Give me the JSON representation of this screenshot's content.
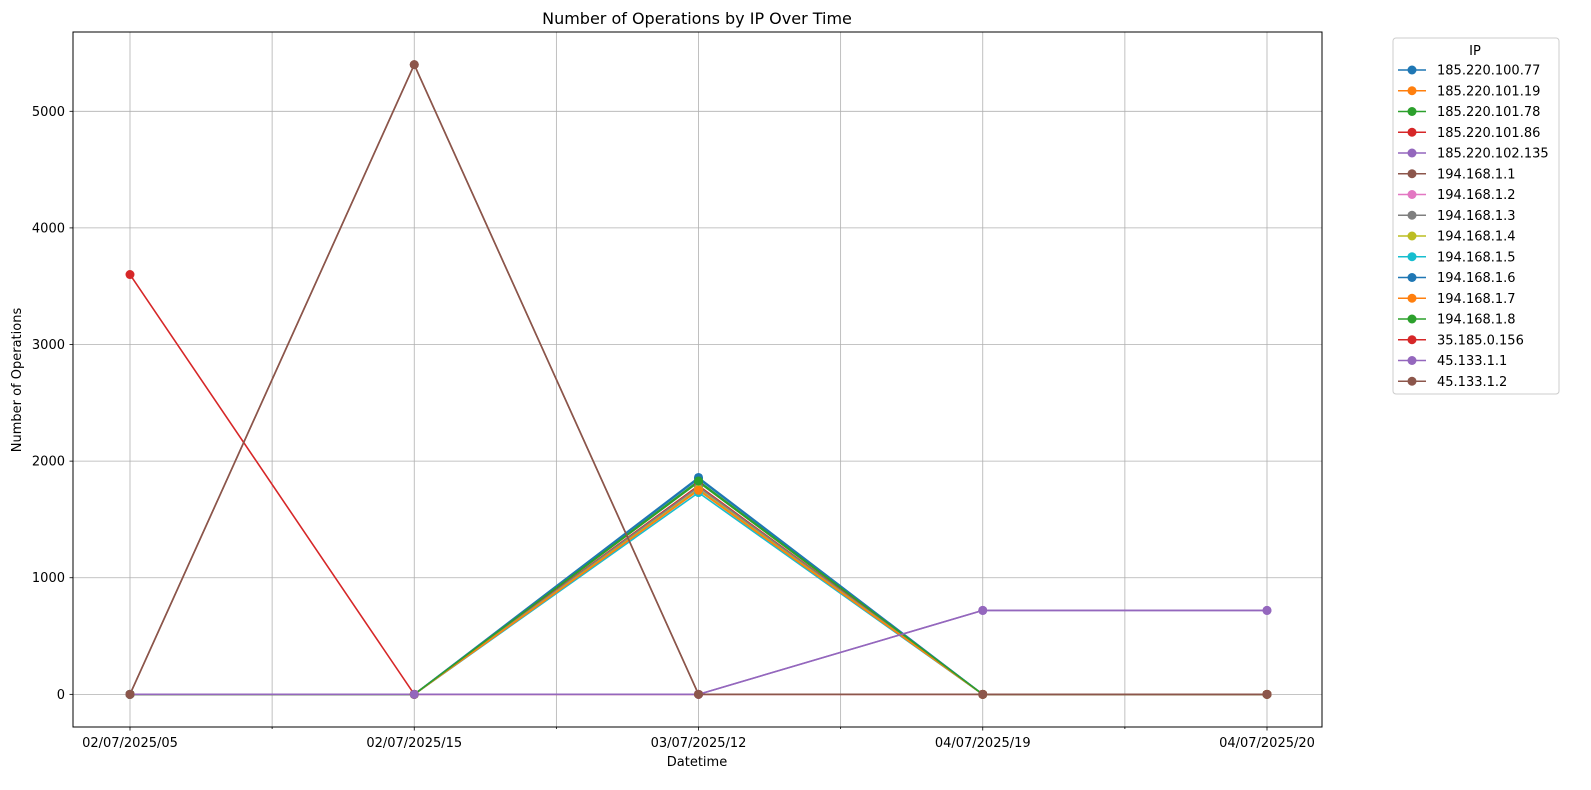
{
  "chart_data": {
    "type": "line",
    "title": "Number of Operations by IP Over Time",
    "xlabel": "Datetime",
    "ylabel": "Number of Operations",
    "categories": [
      "02/07/2025/05",
      "02/07/2025/15",
      "03/07/2025/12",
      "04/07/2025/19",
      "04/07/2025/20"
    ],
    "ylim": [
      -280,
      5680
    ],
    "yticks": [
      0,
      1000,
      2000,
      3000,
      4000,
      5000
    ],
    "grid": true,
    "legend": {
      "title": "IP",
      "placement": "outside-top-right"
    },
    "series": [
      {
        "name": "185.220.100.77",
        "color": "#1f77b4",
        "values": [
          0,
          0,
          1850,
          0,
          0
        ]
      },
      {
        "name": "185.220.101.19",
        "color": "#ff7f0e",
        "values": [
          0,
          0,
          1760,
          0,
          0
        ]
      },
      {
        "name": "185.220.101.78",
        "color": "#2ca02c",
        "values": [
          0,
          0,
          1820,
          0,
          0
        ]
      },
      {
        "name": "185.220.101.86",
        "color": "#d62728",
        "values": [
          0,
          0,
          1790,
          0,
          0
        ]
      },
      {
        "name": "185.220.102.135",
        "color": "#9467bd",
        "values": [
          0,
          0,
          0,
          720,
          720
        ]
      },
      {
        "name": "194.168.1.1",
        "color": "#8c564b",
        "values": [
          0,
          5400,
          0,
          0,
          0
        ]
      },
      {
        "name": "194.168.1.2",
        "color": "#e377c2",
        "values": [
          0,
          0,
          1770,
          0,
          0
        ]
      },
      {
        "name": "194.168.1.3",
        "color": "#7f7f7f",
        "values": [
          0,
          0,
          1780,
          0,
          0
        ]
      },
      {
        "name": "194.168.1.4",
        "color": "#bcbd22",
        "values": [
          0,
          0,
          1760,
          0,
          0
        ]
      },
      {
        "name": "194.168.1.5",
        "color": "#17becf",
        "values": [
          0,
          0,
          1730,
          0,
          0
        ]
      },
      {
        "name": "194.168.1.6",
        "color": "#1f77b4",
        "values": [
          0,
          0,
          1860,
          0,
          0
        ]
      },
      {
        "name": "194.168.1.7",
        "color": "#ff7f0e",
        "values": [
          0,
          0,
          1750,
          0,
          0
        ]
      },
      {
        "name": "194.168.1.8",
        "color": "#2ca02c",
        "values": [
          0,
          0,
          1830,
          0,
          0
        ]
      },
      {
        "name": "35.185.0.156",
        "color": "#d62728",
        "values": [
          3600,
          0,
          0,
          0,
          0
        ]
      },
      {
        "name": "45.133.1.1",
        "color": "#9467bd",
        "values": [
          0,
          0,
          0,
          720,
          720
        ]
      },
      {
        "name": "45.133.1.2",
        "color": "#8c564b",
        "values": [
          0,
          5400,
          0,
          0,
          0
        ]
      }
    ]
  }
}
